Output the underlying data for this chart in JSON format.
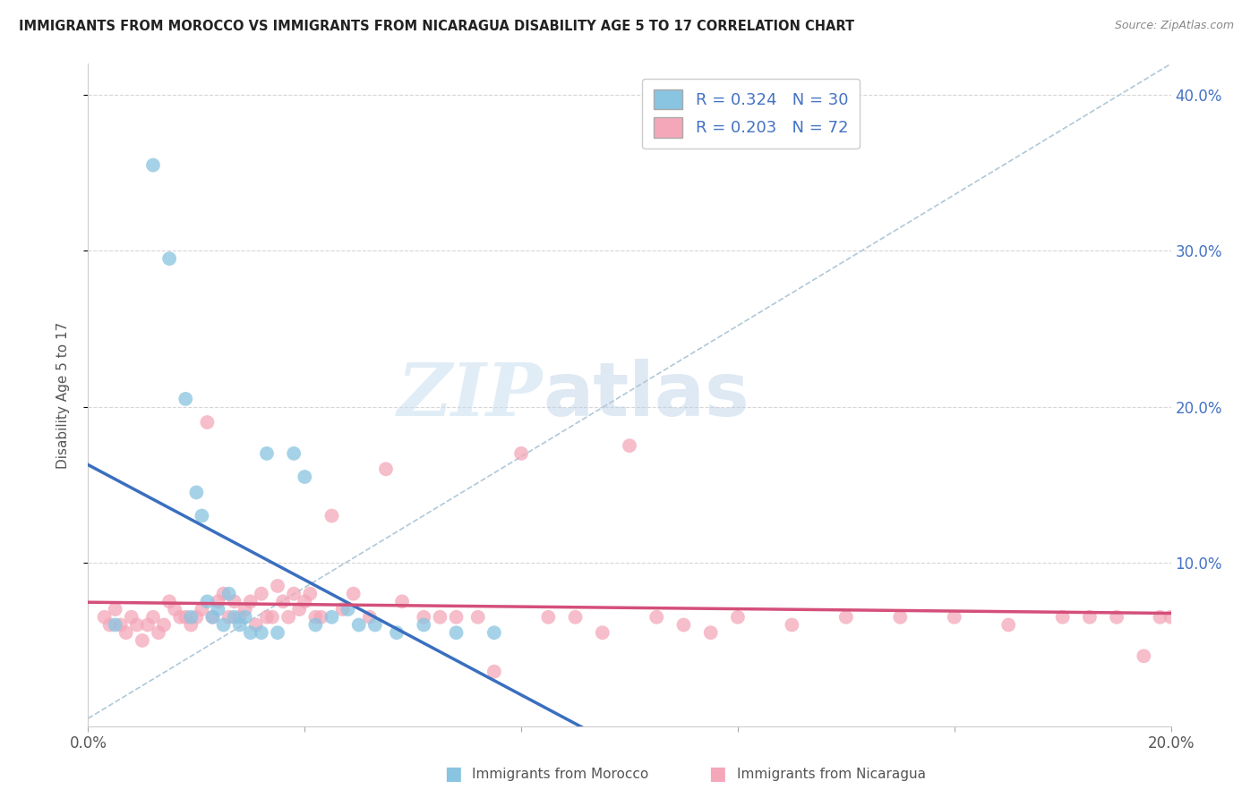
{
  "title": "IMMIGRANTS FROM MOROCCO VS IMMIGRANTS FROM NICARAGUA DISABILITY AGE 5 TO 17 CORRELATION CHART",
  "source": "Source: ZipAtlas.com",
  "ylabel": "Disability Age 5 to 17",
  "xlim": [
    0.0,
    0.2
  ],
  "ylim": [
    -0.005,
    0.42
  ],
  "morocco_color": "#89c4e1",
  "nicaragua_color": "#f4a7b9",
  "morocco_line_color": "#3a6fbf",
  "nicaragua_line_color": "#d44f7a",
  "diagonal_color": "#b0c8d8",
  "R_morocco": 0.324,
  "N_morocco": 30,
  "R_nicaragua": 0.203,
  "N_nicaragua": 72,
  "morocco_x": [
    0.005,
    0.012,
    0.015,
    0.018,
    0.019,
    0.02,
    0.021,
    0.022,
    0.023,
    0.024,
    0.025,
    0.026,
    0.027,
    0.028,
    0.029,
    0.03,
    0.032,
    0.033,
    0.035,
    0.038,
    0.04,
    0.042,
    0.045,
    0.048,
    0.05,
    0.053,
    0.057,
    0.062,
    0.068,
    0.075
  ],
  "morocco_y": [
    0.06,
    0.355,
    0.295,
    0.205,
    0.065,
    0.145,
    0.13,
    0.075,
    0.065,
    0.07,
    0.06,
    0.08,
    0.065,
    0.06,
    0.065,
    0.055,
    0.055,
    0.17,
    0.055,
    0.17,
    0.155,
    0.06,
    0.065,
    0.07,
    0.06,
    0.06,
    0.055,
    0.06,
    0.055,
    0.055
  ],
  "nicaragua_x": [
    0.003,
    0.004,
    0.005,
    0.006,
    0.007,
    0.008,
    0.009,
    0.01,
    0.011,
    0.012,
    0.013,
    0.014,
    0.015,
    0.016,
    0.017,
    0.018,
    0.019,
    0.02,
    0.021,
    0.022,
    0.023,
    0.024,
    0.025,
    0.026,
    0.027,
    0.028,
    0.029,
    0.03,
    0.031,
    0.032,
    0.033,
    0.034,
    0.035,
    0.036,
    0.037,
    0.038,
    0.039,
    0.04,
    0.041,
    0.042,
    0.043,
    0.045,
    0.047,
    0.049,
    0.052,
    0.055,
    0.058,
    0.062,
    0.065,
    0.068,
    0.072,
    0.075,
    0.08,
    0.085,
    0.09,
    0.095,
    0.1,
    0.105,
    0.11,
    0.115,
    0.12,
    0.13,
    0.14,
    0.15,
    0.16,
    0.17,
    0.18,
    0.185,
    0.19,
    0.195,
    0.198,
    0.2
  ],
  "nicaragua_y": [
    0.065,
    0.06,
    0.07,
    0.06,
    0.055,
    0.065,
    0.06,
    0.05,
    0.06,
    0.065,
    0.055,
    0.06,
    0.075,
    0.07,
    0.065,
    0.065,
    0.06,
    0.065,
    0.07,
    0.19,
    0.065,
    0.075,
    0.08,
    0.065,
    0.075,
    0.065,
    0.07,
    0.075,
    0.06,
    0.08,
    0.065,
    0.065,
    0.085,
    0.075,
    0.065,
    0.08,
    0.07,
    0.075,
    0.08,
    0.065,
    0.065,
    0.13,
    0.07,
    0.08,
    0.065,
    0.16,
    0.075,
    0.065,
    0.065,
    0.065,
    0.065,
    0.03,
    0.17,
    0.065,
    0.065,
    0.055,
    0.175,
    0.065,
    0.06,
    0.055,
    0.065,
    0.06,
    0.065,
    0.065,
    0.065,
    0.06,
    0.065,
    0.065,
    0.065,
    0.04,
    0.065,
    0.065
  ],
  "background_color": "#ffffff",
  "grid_color": "#cccccc",
  "watermark_zip": "ZIP",
  "watermark_atlas": "atlas"
}
